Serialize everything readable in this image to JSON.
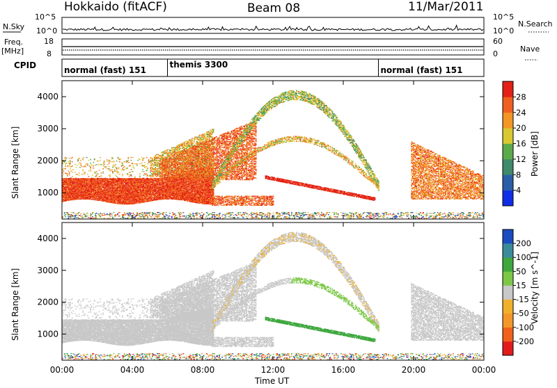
{
  "header": {
    "station": "Hokkaido (fitACF)",
    "beam": "Beam 08",
    "date": "11/Mar/2011"
  },
  "strip_labels": {
    "nsky": "N.Sky",
    "nsky_top": "10^5",
    "nsky_bottom": "10^0",
    "nsearch": "N.Search",
    "nsearch_top": "10^5",
    "nsearch_bottom": "10^0",
    "freq_top": "Freq.",
    "freq_unit": "[MHz]",
    "freq_high": "18",
    "freq_low": "8",
    "nave_high": "60",
    "nave_low": "0",
    "nave": "Nave",
    "cpid": "CPID"
  },
  "cpid_segments": [
    {
      "label": "normal (fast) 151",
      "start_hour": 0
    },
    {
      "label": "themis 3300",
      "start_hour": 6
    },
    {
      "label": "normal (fast) 151",
      "start_hour": 18
    }
  ],
  "power_panel": {
    "ylabel": "Slant Range [km]",
    "cb_label": "Power [dB]",
    "cb_ticks": [
      "4",
      "8",
      "12",
      "16",
      "20",
      "24",
      "28"
    ],
    "cb_colors": [
      "#0f2ee6",
      "#2a5fa8",
      "#3e8a6a",
      "#5caa4c",
      "#d8c832",
      "#f29626",
      "#f06020",
      "#e32118"
    ]
  },
  "velocity_panel": {
    "ylabel": "Slant Range [km]",
    "cb_label": "Velocity [m s^-1]",
    "cb_ticks": [
      "-200",
      "-100",
      "-50",
      "-15",
      "15",
      "50",
      "100",
      "200"
    ],
    "cb_colors": [
      "#e21c1c",
      "#f0621e",
      "#f4972a",
      "#f0b02c",
      "#c8c8c8",
      "#7cc846",
      "#3ea83e",
      "#3b8c9a",
      "#1a4cc0"
    ]
  },
  "chart_data": {
    "type": "heatmap",
    "xlabel": "Time UT",
    "x_ticks": [
      "00:00",
      "04:00",
      "08:00",
      "12:00",
      "16:00",
      "20:00",
      "00:00"
    ],
    "xlim_hours": [
      0,
      24
    ],
    "y_ticks": [
      "1000",
      "2000",
      "3000",
      "4000"
    ],
    "ylim_km": [
      180,
      4500
    ],
    "grid": false,
    "power_features": [
      {
        "name": "main band",
        "t_start": 0,
        "t_end": 8.5,
        "range_low_km": 700,
        "range_high_km": 1500,
        "power_db": 28
      },
      {
        "name": "lower band",
        "t_start": 8.5,
        "t_end": 12,
        "range_low_km": 580,
        "range_high_km": 950,
        "power_db": 24
      },
      {
        "name": "arc",
        "t_start": 8.5,
        "t_end": 18,
        "range_low_km": 1000,
        "range_high_km": 4200,
        "power_db": 10
      },
      {
        "name": "evening echoes",
        "t_start": 20,
        "t_end": 24,
        "range_low_km": 800,
        "range_high_km": 2500,
        "power_db": 24
      }
    ]
  }
}
